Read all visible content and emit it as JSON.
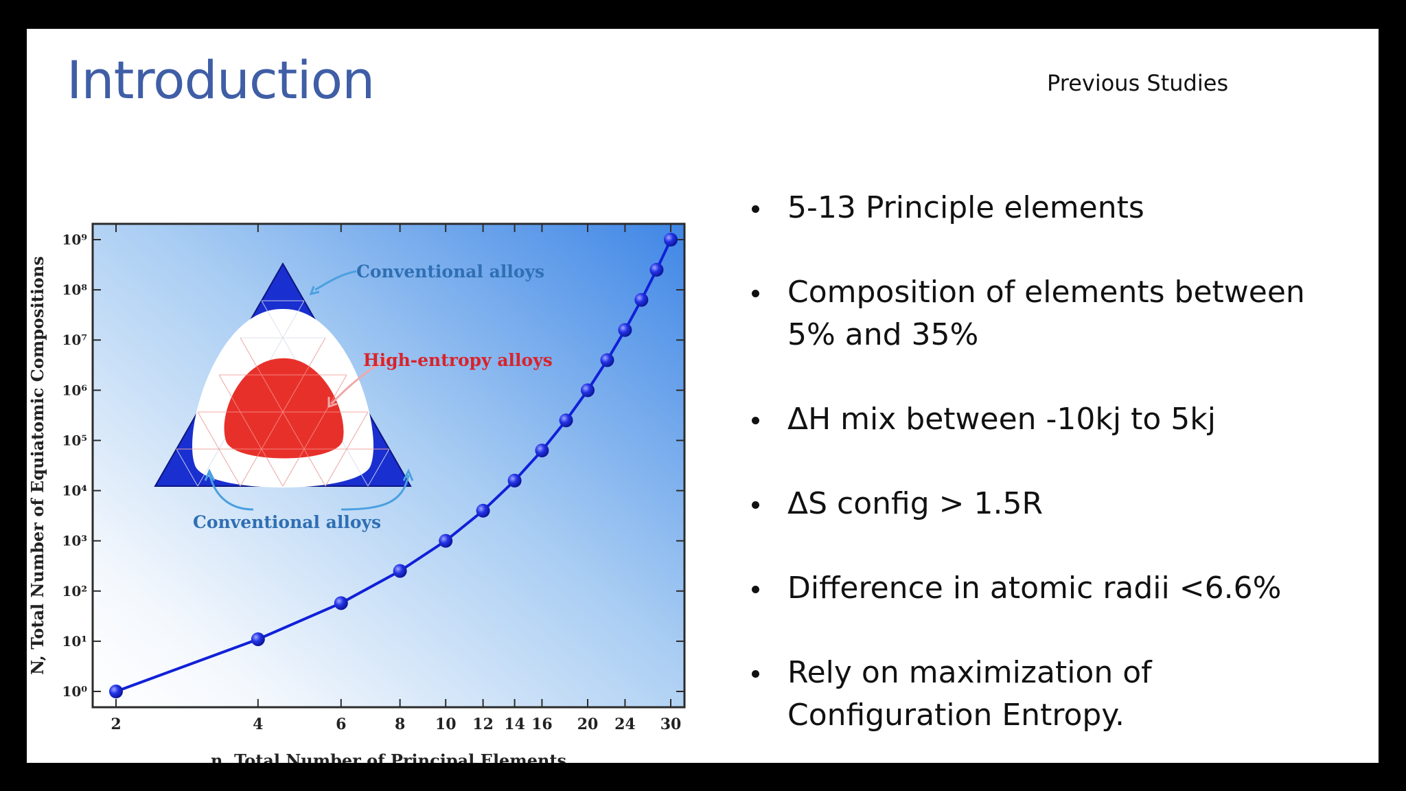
{
  "slide": {
    "title": "Introduction",
    "subtitle": "Previous Studies"
  },
  "bullets": [
    "5-13 Principle elements",
    "Composition of elements between 5% and 35%",
    "ΔH mix between -10kj to 5kj",
    "ΔS config > 1.5R",
    "Difference in atomic radii <6.6%",
    "Rely on maximization of Configuration Entropy."
  ],
  "chart_data": {
    "type": "line",
    "x_scale": "log",
    "y_scale": "log",
    "xlabel": "n, Total Number of Principal Elements",
    "ylabel": "N, Total Number of Equiatomic Compositions",
    "xticks": [
      "2",
      "4",
      "6",
      "8",
      "10",
      "12",
      "14",
      "16",
      "20",
      "24",
      "30"
    ],
    "yticks": [
      "10⁰",
      "10¹",
      "10²",
      "10³",
      "10⁴",
      "10⁵",
      "10⁶",
      "10⁷",
      "10⁸",
      "10⁹"
    ],
    "xlim": [
      2,
      30
    ],
    "ylim_exponent": [
      0,
      9
    ],
    "x": [
      2,
      4,
      6,
      8,
      10,
      12,
      14,
      16,
      18,
      20,
      22,
      24,
      26,
      28,
      30
    ],
    "y_exponent": [
      0,
      1.04,
      1.76,
      2.4,
      3.0,
      3.6,
      4.2,
      4.8,
      5.4,
      6.0,
      6.6,
      7.2,
      7.8,
      8.4,
      9.0
    ],
    "inset": {
      "label_top": "Conventional alloys",
      "label_center": "High-entropy alloys",
      "label_bottom": "Conventional alloys"
    },
    "colors": {
      "line": "#1020d8",
      "corner": "#1a2fd0",
      "hea": "#e8302a",
      "conv_label": "#2f6fb3",
      "hea_label": "#d9232a"
    }
  }
}
